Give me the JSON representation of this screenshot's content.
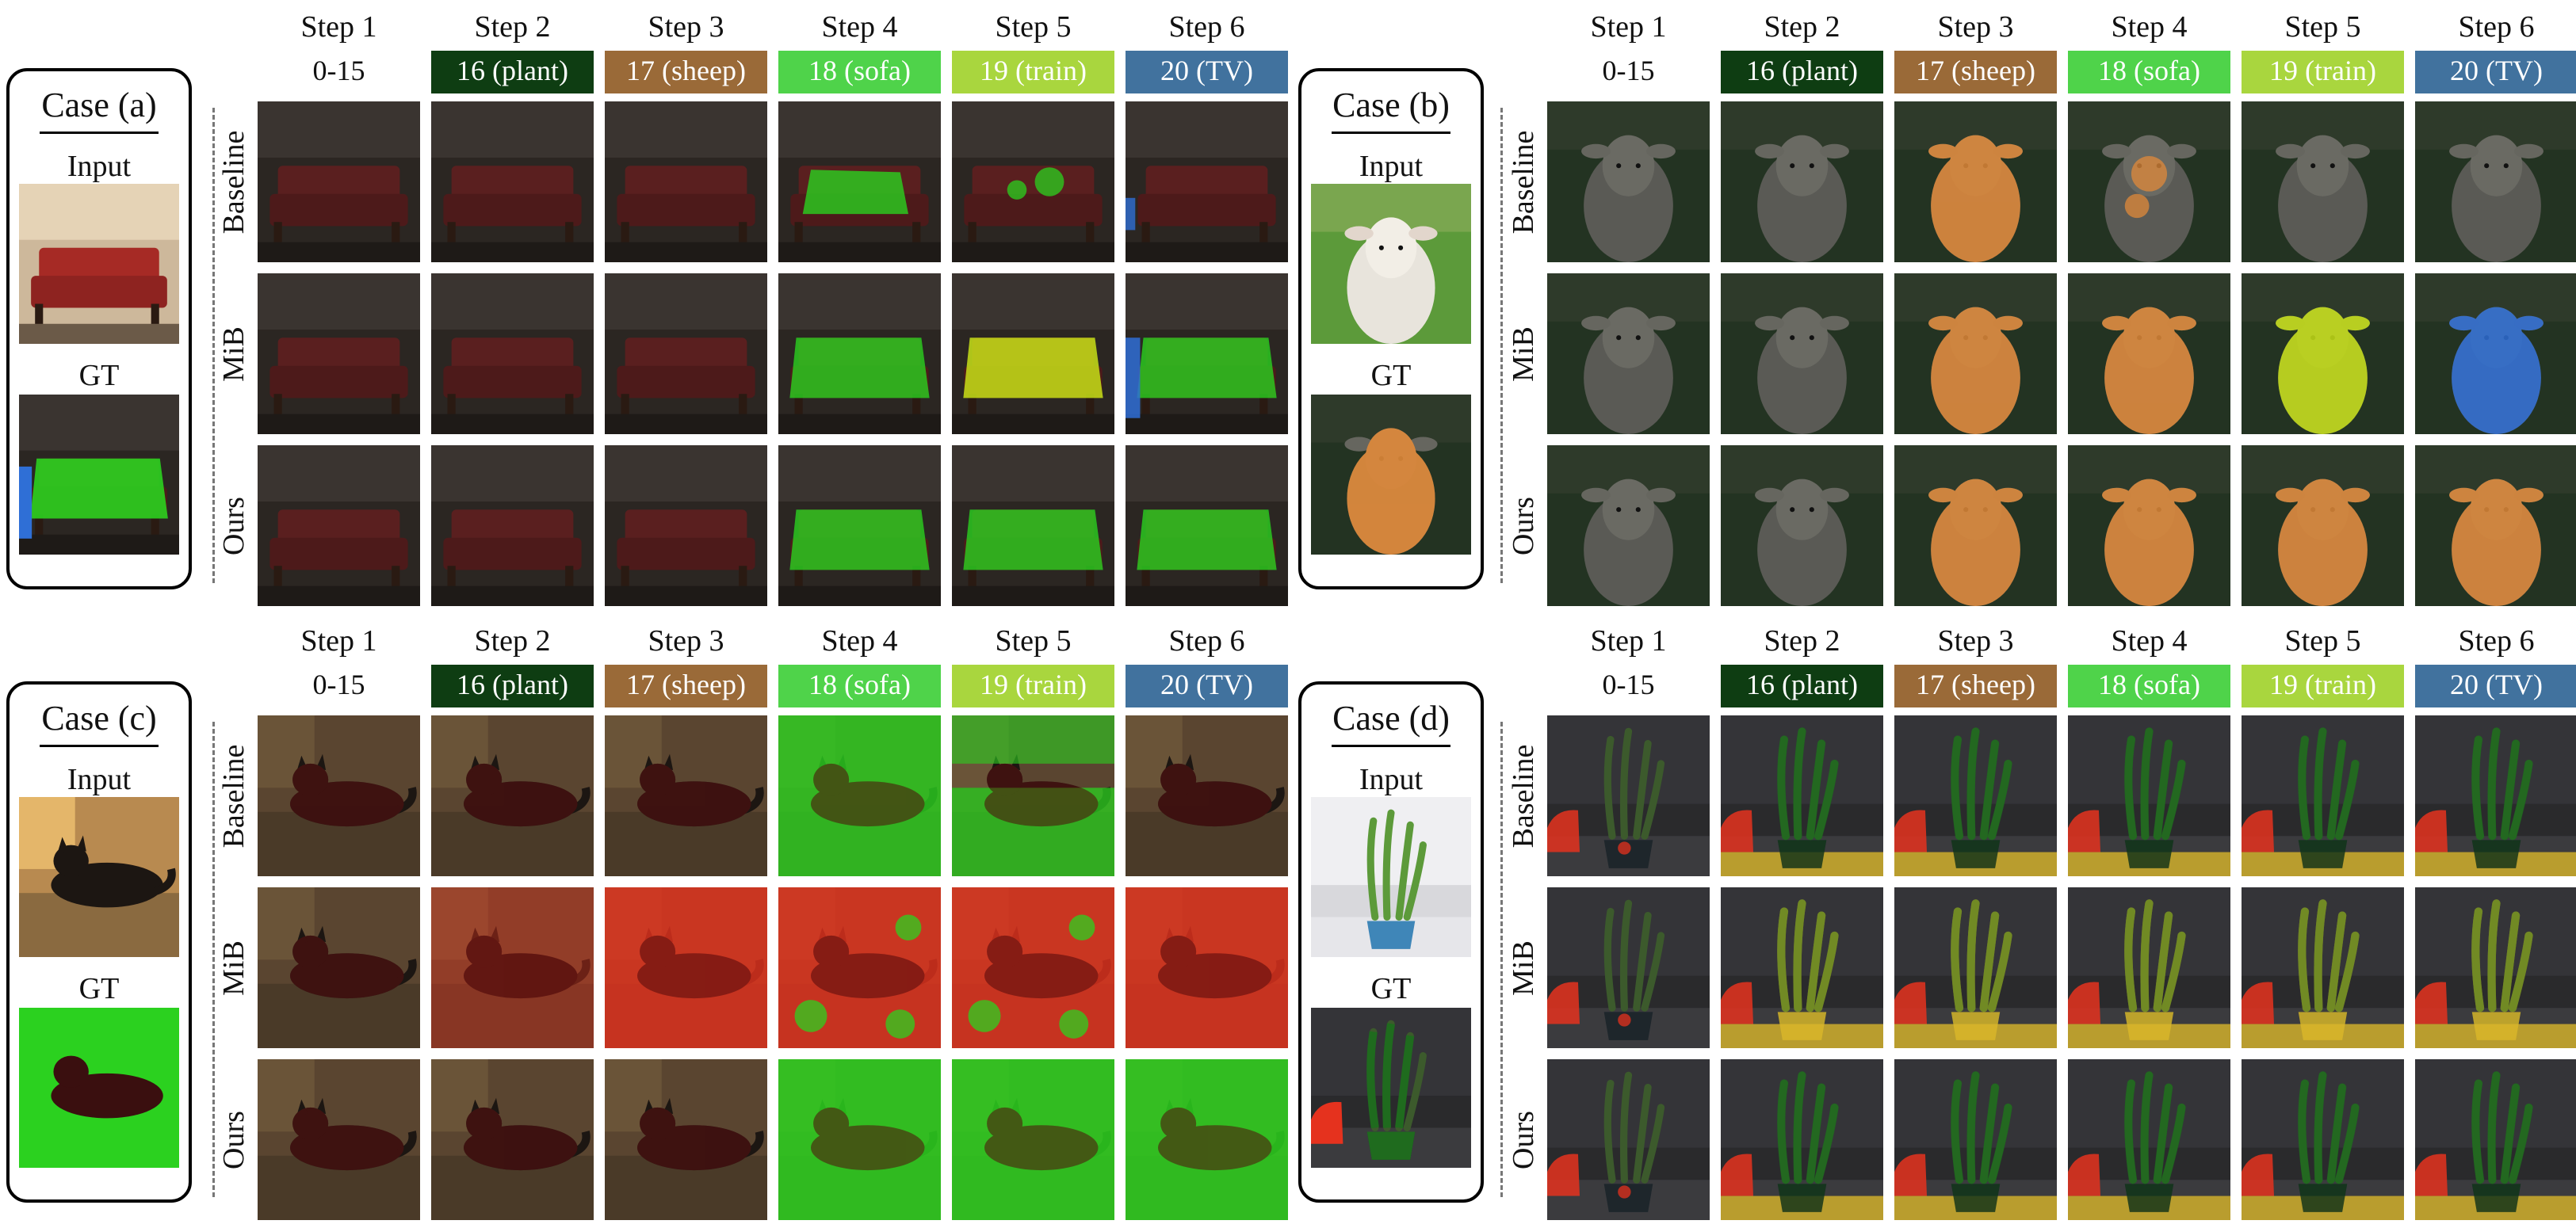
{
  "steps": [
    "Step 1",
    "Step 2",
    "Step 3",
    "Step 4",
    "Step 5",
    "Step 6"
  ],
  "classes": [
    {
      "label": "0-15",
      "color": "#ffffff",
      "text_color": "#111111"
    },
    {
      "label": "16 (plant)",
      "color": "#0e3d12",
      "text_color": "#ffffff"
    },
    {
      "label": "17 (sheep)",
      "color": "#9a6a38",
      "text_color": "#ffffff"
    },
    {
      "label": "18 (sofa)",
      "color": "#4fd34a",
      "text_color": "#ffffff"
    },
    {
      "label": "19 (train)",
      "color": "#a9d63e",
      "text_color": "#ffffff"
    },
    {
      "label": "20 (TV)",
      "color": "#41729e",
      "text_color": "#ffffff"
    }
  ],
  "rows": [
    "Baseline",
    "MiB",
    "Ours"
  ],
  "case_labels": {
    "input": "Input",
    "gt": "GT"
  },
  "cases": [
    {
      "id": "a",
      "title": "Case (a)",
      "scene": "sofa"
    },
    {
      "id": "b",
      "title": "Case (b)",
      "scene": "sheep"
    },
    {
      "id": "c",
      "title": "Case (c)",
      "scene": "cat"
    },
    {
      "id": "d",
      "title": "Case (d)",
      "scene": "plant"
    }
  ],
  "colors": {
    "sofa_overlay": "#2bd11f",
    "train_overlay": "#c7e117",
    "tv_overlay": "#2f6fd6",
    "sheep_overlay": "#e08a3a",
    "background_red": "#e5321e",
    "plant_green": "#1f6b1e",
    "pot_yellow": "#d9b62a"
  }
}
